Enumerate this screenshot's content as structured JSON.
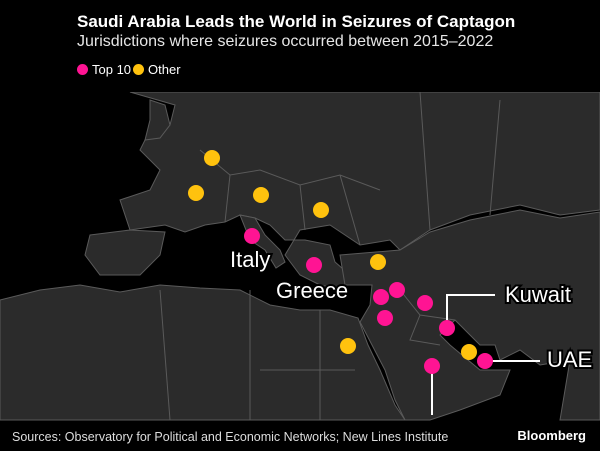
{
  "header": {
    "title": "Saudi Arabia Leads the World in Seizures of Captagon",
    "subtitle": "Jurisdictions where seizures occurred between 2015–2022"
  },
  "legend": [
    {
      "label": "Top 10",
      "color": "#ff1493"
    },
    {
      "label": "Other",
      "color": "#ffc20e"
    }
  ],
  "labels": {
    "italy": "Italy",
    "greece": "Greece",
    "kuwait": "Kuwait",
    "uae": "UAE"
  },
  "colors": {
    "land": "#2b2b2b",
    "border": "#5a5a5a",
    "sea": "#000000"
  },
  "footer": {
    "source": "Sources: Observatory for Political and Economic Networks; New Lines Institute",
    "brand": "Bloomberg"
  }
}
